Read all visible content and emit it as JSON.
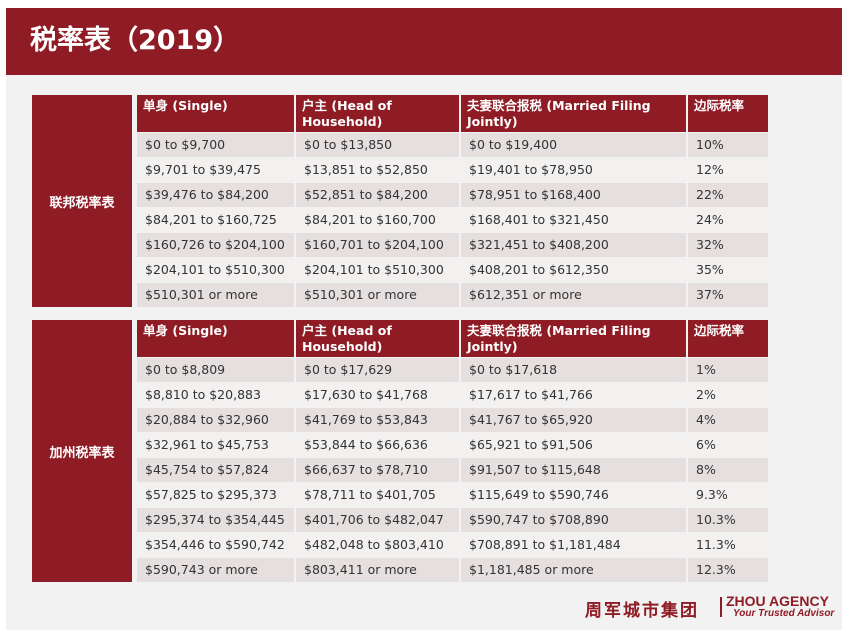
{
  "title": "税率表（2019）",
  "colors": {
    "accent": "#8f1b24",
    "row_odd": "#e5dfdf",
    "row_even": "#f3f0f0"
  },
  "headers": [
    "单身 (Single)",
    "户主 (Head of Household)",
    "夫妻联合报税 (Married Filing Jointly)",
    "边际税率"
  ],
  "federal": {
    "label": "联邦税率表",
    "rows": [
      [
        "$0 to $9,700",
        "$0 to $13,850",
        "$0 to $19,400",
        "10%"
      ],
      [
        "$9,701 to $39,475",
        "$13,851 to $52,850",
        "$19,401 to $78,950",
        "12%"
      ],
      [
        "$39,476 to $84,200",
        "$52,851 to $84,200",
        "$78,951 to $168,400",
        "22%"
      ],
      [
        "$84,201 to $160,725",
        "$84,201 to $160,700",
        "$168,401 to $321,450",
        "24%"
      ],
      [
        "$160,726 to $204,100",
        "$160,701 to $204,100",
        "$321,451 to $408,200",
        "32%"
      ],
      [
        "$204,101 to $510,300",
        "$204,101 to $510,300",
        "$408,201 to $612,350",
        "35%"
      ],
      [
        "$510,301 or more",
        "$510,301 or more",
        "$612,351 or more",
        "37%"
      ]
    ]
  },
  "california": {
    "label": "加州税率表",
    "rows": [
      [
        "$0 to $8,809",
        "$0 to $17,629",
        "$0 to $17,618",
        "1%"
      ],
      [
        "$8,810 to $20,883",
        "$17,630 to $41,768",
        "$17,617 to $41,766",
        "2%"
      ],
      [
        "$20,884 to $32,960",
        "$41,769 to $53,843",
        "$41,767 to $65,920",
        "4%"
      ],
      [
        "$32,961 to $45,753",
        "$53,844 to $66,636",
        "$65,921 to $91,506",
        "6%"
      ],
      [
        "$45,754 to $57,824",
        "$66,637 to $78,710",
        "$91,507 to $115,648",
        "8%"
      ],
      [
        "$57,825 to $295,373",
        "$78,711 to $401,705",
        "$115,649 to $590,746",
        "9.3%"
      ],
      [
        "$295,374 to $354,445",
        "$401,706 to $482,047",
        "$590,747 to $708,890",
        "10.3%"
      ],
      [
        "$354,446 to $590,742",
        "$482,048 to $803,410",
        "$708,891 to $1,181,484",
        "11.3%"
      ],
      [
        "$590,743 or more",
        "$803,411 or more",
        "$1,181,485 or more",
        "12.3%"
      ]
    ]
  },
  "footer": {
    "brand_cn": "周军城市集团",
    "brand_en": "ZHOU AGENCY",
    "tagline": "Your Trusted Advisor"
  }
}
